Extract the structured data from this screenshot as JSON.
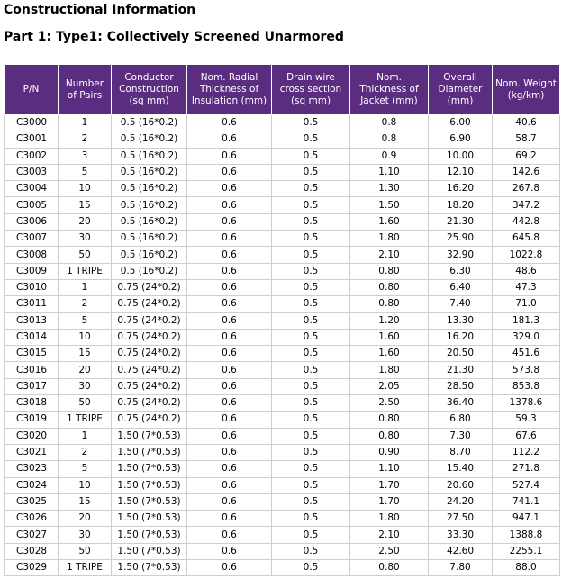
{
  "title": "Constructional Information",
  "subtitle": "Part 1: Type1: Collectively Screened Unarmored",
  "table": {
    "headers": [
      "P/N",
      "Number of Pairs",
      "Conductor Construction (sq mm)",
      "Nom. Radial Thickness of Insulation (mm)",
      "Drain wire cross section (sq mm)",
      "Nom. Thickness of Jacket (mm)",
      "Overall Diameter (mm)",
      "Nom. Weight (kg/km)"
    ],
    "rows": [
      [
        "C3000",
        "1",
        "0.5 (16*0.2)",
        "0.6",
        "0.5",
        "0.8",
        "6.00",
        "40.6"
      ],
      [
        "C3001",
        "2",
        "0.5 (16*0.2)",
        "0.6",
        "0.5",
        "0.8",
        "6.90",
        "58.7"
      ],
      [
        "C3002",
        "3",
        "0.5 (16*0.2)",
        "0.6",
        "0.5",
        "0.9",
        "10.00",
        "69.2"
      ],
      [
        "C3003",
        "5",
        "0.5 (16*0.2)",
        "0.6",
        "0.5",
        "1.10",
        "12.10",
        "142.6"
      ],
      [
        "C3004",
        "10",
        "0.5 (16*0.2)",
        "0.6",
        "0.5",
        "1.30",
        "16.20",
        "267.8"
      ],
      [
        "C3005",
        "15",
        "0.5 (16*0.2)",
        "0.6",
        "0.5",
        "1.50",
        "18.20",
        "347.2"
      ],
      [
        "C3006",
        "20",
        "0.5 (16*0.2)",
        "0.6",
        "0.5",
        "1.60",
        "21.30",
        "442.8"
      ],
      [
        "C3007",
        "30",
        "0.5 (16*0.2)",
        "0.6",
        "0.5",
        "1.80",
        "25.90",
        "645.8"
      ],
      [
        "C3008",
        "50",
        "0.5 (16*0.2)",
        "0.6",
        "0.5",
        "2.10",
        "32.90",
        "1022.8"
      ],
      [
        "C3009",
        "1 TRIPE",
        "0.5 (16*0.2)",
        "0.6",
        "0.5",
        "0.80",
        "6.30",
        "48.6"
      ],
      [
        "C3010",
        "1",
        "0.75 (24*0.2)",
        "0.6",
        "0.5",
        "0.80",
        "6.40",
        "47.3"
      ],
      [
        "C3011",
        "2",
        "0.75 (24*0.2)",
        "0.6",
        "0.5",
        "0.80",
        "7.40",
        "71.0"
      ],
      [
        "C3013",
        "5",
        "0.75 (24*0.2)",
        "0.6",
        "0.5",
        "1.20",
        "13.30",
        "181.3"
      ],
      [
        "C3014",
        "10",
        "0.75 (24*0.2)",
        "0.6",
        "0.5",
        "1.60",
        "16.20",
        "329.0"
      ],
      [
        "C3015",
        "15",
        "0.75 (24*0.2)",
        "0.6",
        "0.5",
        "1.60",
        "20.50",
        "451.6"
      ],
      [
        "C3016",
        "20",
        "0.75 (24*0.2)",
        "0.6",
        "0.5",
        "1.80",
        "21.30",
        "573.8"
      ],
      [
        "C3017",
        "30",
        "0.75 (24*0.2)",
        "0.6",
        "0.5",
        "2.05",
        "28.50",
        "853.8"
      ],
      [
        "C3018",
        "50",
        "0.75 (24*0.2)",
        "0.6",
        "0.5",
        "2.50",
        "36.40",
        "1378.6"
      ],
      [
        "C3019",
        "1 TRIPE",
        "0.75 (24*0.2)",
        "0.6",
        "0.5",
        "0.80",
        "6.80",
        "59.3"
      ],
      [
        "C3020",
        "1",
        "1.50 (7*0.53)",
        "0.6",
        "0.5",
        "0.80",
        "7.30",
        "67.6"
      ],
      [
        "C3021",
        "2",
        "1.50 (7*0.53)",
        "0.6",
        "0.5",
        "0.90",
        "8.70",
        "112.2"
      ],
      [
        "C3023",
        "5",
        "1.50 (7*0.53)",
        "0.6",
        "0.5",
        "1.10",
        "15.40",
        "271.8"
      ],
      [
        "C3024",
        "10",
        "1.50 (7*0.53)",
        "0.6",
        "0.5",
        "1.70",
        "20.60",
        "527.4"
      ],
      [
        "C3025",
        "15",
        "1.50 (7*0.53)",
        "0.6",
        "0.5",
        "1.70",
        "24.20",
        "741.1"
      ],
      [
        "C3026",
        "20",
        "1.50 (7*0.53)",
        "0.6",
        "0.5",
        "1.80",
        "27.50",
        "947.1"
      ],
      [
        "C3027",
        "30",
        "1.50 (7*0.53)",
        "0.6",
        "0.5",
        "2.10",
        "33.30",
        "1388.8"
      ],
      [
        "C3028",
        "50",
        "1.50 (7*0.53)",
        "0.6",
        "0.5",
        "2.50",
        "42.60",
        "2255.1"
      ],
      [
        "C3029",
        "1 TRIPE",
        "1.50 (7*0.53)",
        "0.6",
        "0.5",
        "0.80",
        "7.80",
        "88.0"
      ]
    ]
  },
  "colors": {
    "header_bg": "#5b2d80",
    "header_text": "#ffffff",
    "grid": "#cfcfcf"
  }
}
